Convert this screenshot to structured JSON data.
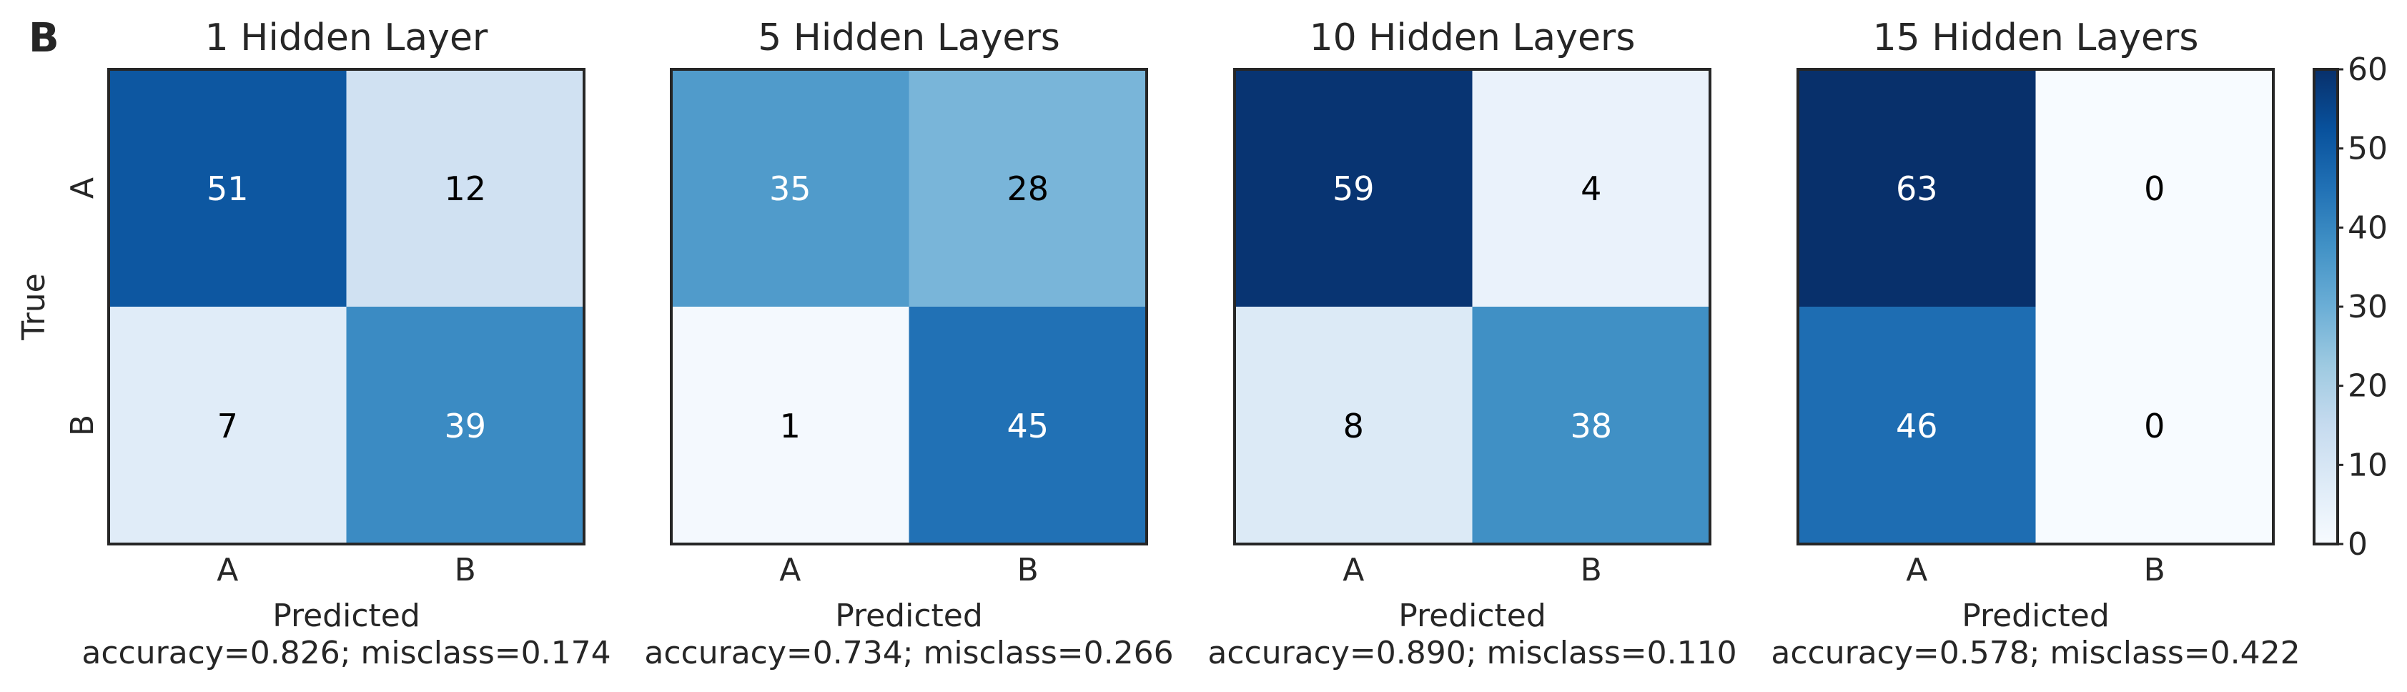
{
  "panel_label": "B",
  "chart_data": [
    {
      "type": "heatmap",
      "title": "1 Hidden Layer",
      "x_categories": [
        "A",
        "B"
      ],
      "y_categories": [
        "A",
        "B"
      ],
      "values": [
        [
          51,
          12
        ],
        [
          7,
          39
        ]
      ],
      "xlabel": "Predicted",
      "ylabel": "True",
      "caption": "accuracy=0.826; misclass=0.174"
    },
    {
      "type": "heatmap",
      "title": "5 Hidden Layers",
      "x_categories": [
        "A",
        "B"
      ],
      "y_categories": [
        "A",
        "B"
      ],
      "values": [
        [
          35,
          28
        ],
        [
          1,
          45
        ]
      ],
      "xlabel": "Predicted",
      "ylabel": "",
      "caption": "accuracy=0.734; misclass=0.266"
    },
    {
      "type": "heatmap",
      "title": "10 Hidden Layers",
      "x_categories": [
        "A",
        "B"
      ],
      "y_categories": [
        "A",
        "B"
      ],
      "values": [
        [
          59,
          4
        ],
        [
          8,
          38
        ]
      ],
      "xlabel": "Predicted",
      "ylabel": "",
      "caption": "accuracy=0.890; misclass=0.110"
    },
    {
      "type": "heatmap",
      "title": "15 Hidden Layers",
      "x_categories": [
        "A",
        "B"
      ],
      "y_categories": [
        "A",
        "B"
      ],
      "values": [
        [
          63,
          0
        ],
        [
          46,
          0
        ]
      ],
      "xlabel": "Predicted",
      "ylabel": "",
      "caption": "accuracy=0.578; misclass=0.422"
    }
  ],
  "colorbar": {
    "range": [
      0,
      60
    ],
    "ticks": [
      "0",
      "10",
      "20",
      "30",
      "40",
      "50",
      "60"
    ],
    "colormap": "Blues",
    "color_low": "#f7fbff",
    "color_high": "#08306b"
  }
}
